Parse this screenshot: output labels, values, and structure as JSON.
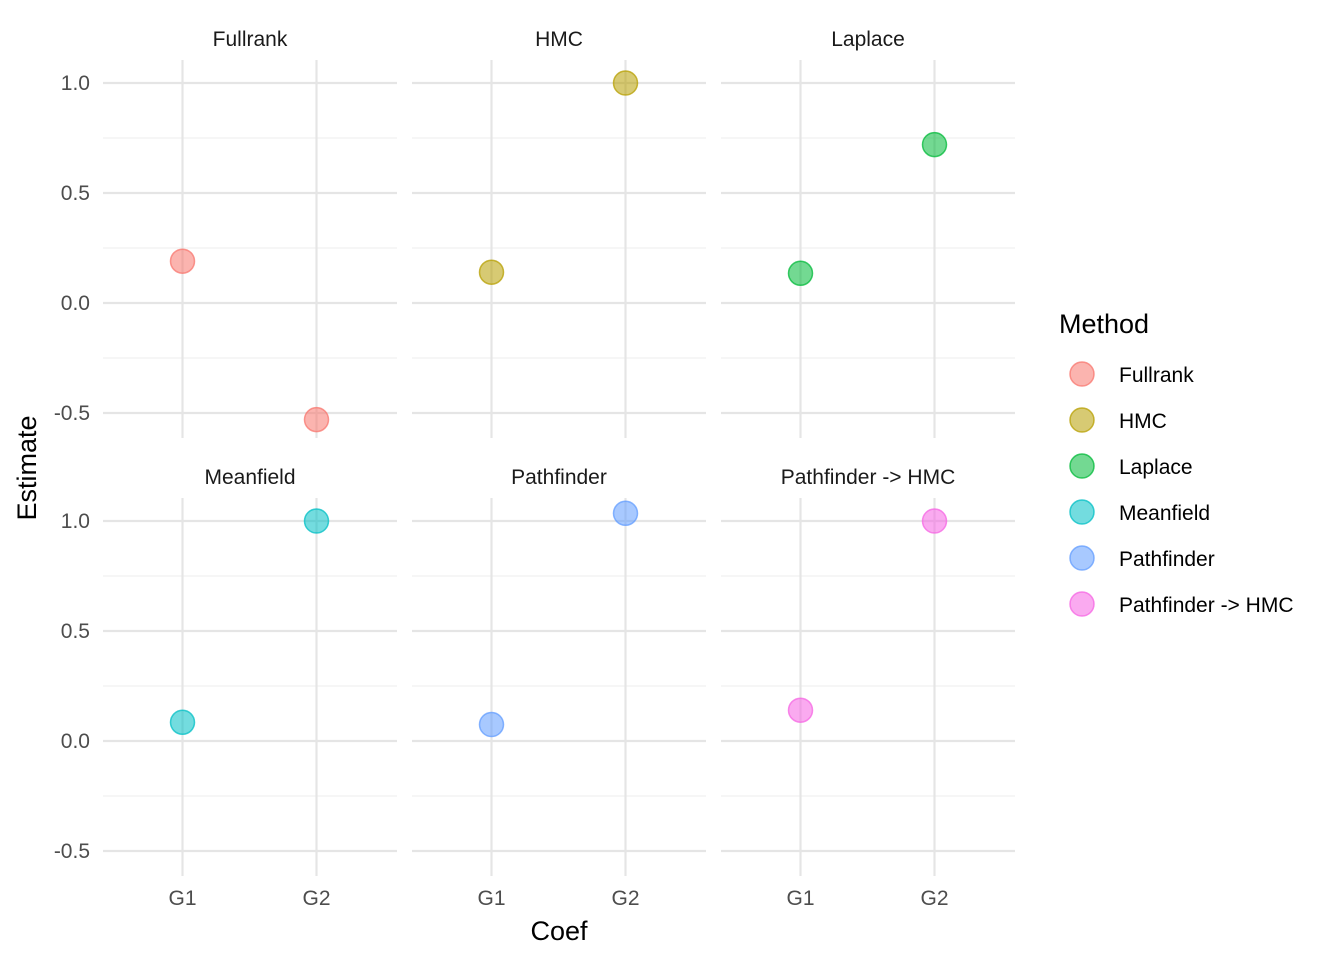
{
  "chart_data": {
    "type": "scatter",
    "facet_by": "Method",
    "xlabel": "Coef",
    "ylabel": "Estimate",
    "x_categories": [
      "G1",
      "G2"
    ],
    "ylim": [
      -0.6,
      1.1
    ],
    "y_ticks": [
      -0.5,
      0.0,
      0.5,
      1.0
    ],
    "y_tick_labels": [
      "-0.5",
      "0.0",
      "0.5",
      "1.0"
    ],
    "grid": true,
    "legend": {
      "title": "Method",
      "position": "right",
      "entries": [
        "Fullrank",
        "HMC",
        "Laplace",
        "Meanfield",
        "Pathfinder",
        "Pathfinder -> HMC"
      ]
    },
    "colors": {
      "Fullrank": "#F8766D",
      "HMC": "#B79F00",
      "Laplace": "#00BA38",
      "Meanfield": "#00BFC4",
      "Pathfinder": "#619CFF",
      "Pathfinder -> HMC": "#F564E3"
    },
    "panels": [
      {
        "title": "Fullrank",
        "points": [
          {
            "x": "G1",
            "y": 0.19
          },
          {
            "x": "G2",
            "y": -0.53
          }
        ]
      },
      {
        "title": "HMC",
        "points": [
          {
            "x": "G1",
            "y": 0.14
          },
          {
            "x": "G2",
            "y": 1.0
          }
        ]
      },
      {
        "title": "Laplace",
        "points": [
          {
            "x": "G1",
            "y": 0.135
          },
          {
            "x": "G2",
            "y": 0.72
          }
        ]
      },
      {
        "title": "Meanfield",
        "points": [
          {
            "x": "G1",
            "y": 0.085
          },
          {
            "x": "G2",
            "y": 1.0
          }
        ]
      },
      {
        "title": "Pathfinder",
        "points": [
          {
            "x": "G1",
            "y": 0.075
          },
          {
            "x": "G2",
            "y": 1.035
          }
        ]
      },
      {
        "title": "Pathfinder -> HMC",
        "points": [
          {
            "x": "G1",
            "y": 0.14
          },
          {
            "x": "G2",
            "y": 1.0
          }
        ]
      }
    ]
  }
}
